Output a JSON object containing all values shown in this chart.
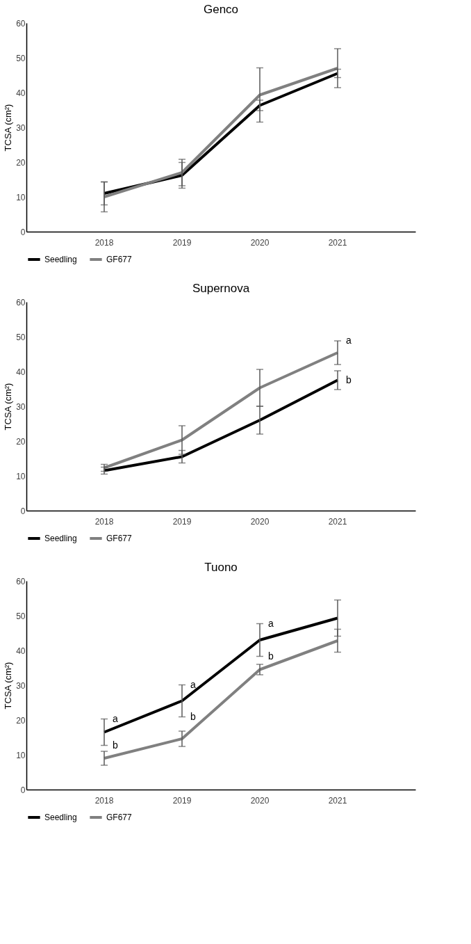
{
  "chart_data": [
    {
      "type": "line",
      "title": "Genco",
      "ylabel": "TCSA (cm²)",
      "categories": [
        "2018",
        "2019",
        "2020",
        "2021"
      ],
      "ylim": [
        0,
        60
      ],
      "yticks": [
        0,
        10,
        20,
        30,
        40,
        50,
        60
      ],
      "grid": false,
      "legend": "bottom",
      "marker": "none",
      "line_style": "solid",
      "series": [
        {
          "name": "Seedling",
          "color": "#000000",
          "values": [
            11,
            16.2,
            36.3,
            45.5
          ],
          "errors": [
            3.3,
            3.7,
            1.5,
            1.2
          ]
        },
        {
          "name": "GF677",
          "color": "#808080",
          "values": [
            10,
            17,
            39.3,
            47
          ],
          "errors": [
            4.3,
            3.8,
            7.8,
            5.6
          ]
        }
      ]
    },
    {
      "type": "line",
      "title": "Supernova",
      "ylabel": "TCSA (cm²)",
      "categories": [
        "2018",
        "2019",
        "2020",
        "2021"
      ],
      "ylim": [
        0,
        60
      ],
      "yticks": [
        0,
        10,
        20,
        30,
        40,
        50,
        60
      ],
      "grid": false,
      "legend": "bottom",
      "marker": "none",
      "line_style": "solid",
      "series": [
        {
          "name": "Seedling",
          "color": "#000000",
          "values": [
            11.5,
            15.5,
            26,
            37.5
          ],
          "errors": [
            1,
            1.8,
            4,
            2.7
          ]
        },
        {
          "name": "GF677",
          "color": "#808080",
          "values": [
            12.3,
            20.3,
            35.3,
            45.4
          ],
          "errors": [
            1,
            4.1,
            5.3,
            3.4
          ]
        }
      ],
      "annotations": [
        {
          "text": "a",
          "x": "2021",
          "y": 48.8
        },
        {
          "text": "b",
          "x": "2021",
          "y": 37.5
        }
      ]
    },
    {
      "type": "line",
      "title": "Tuono",
      "ylabel": "TCSA (cm²)",
      "categories": [
        "2018",
        "2019",
        "2020",
        "2021"
      ],
      "ylim": [
        0,
        60
      ],
      "yticks": [
        0,
        10,
        20,
        30,
        40,
        50,
        60
      ],
      "grid": false,
      "legend": "bottom",
      "marker": "none",
      "line_style": "solid",
      "series": [
        {
          "name": "Seedling",
          "color": "#000000",
          "values": [
            16.5,
            25.5,
            43,
            49.3
          ],
          "errors": [
            3.8,
            4.6,
            4.7,
            5.2
          ]
        },
        {
          "name": "GF677",
          "color": "#808080",
          "values": [
            9,
            14.6,
            34.5,
            42.8
          ],
          "errors": [
            2,
            2.2,
            1.5,
            3.3
          ]
        }
      ],
      "annotations": [
        {
          "text": "a",
          "x": "2018",
          "y": 20.3
        },
        {
          "text": "b",
          "x": "2018",
          "y": 12.7
        },
        {
          "text": "a",
          "x": "2019",
          "y": 30.1
        },
        {
          "text": "b",
          "x": "2019",
          "y": 20.9
        },
        {
          "text": "a",
          "x": "2020",
          "y": 47.7
        },
        {
          "text": "b",
          "x": "2020",
          "y": 38.3
        }
      ]
    }
  ]
}
